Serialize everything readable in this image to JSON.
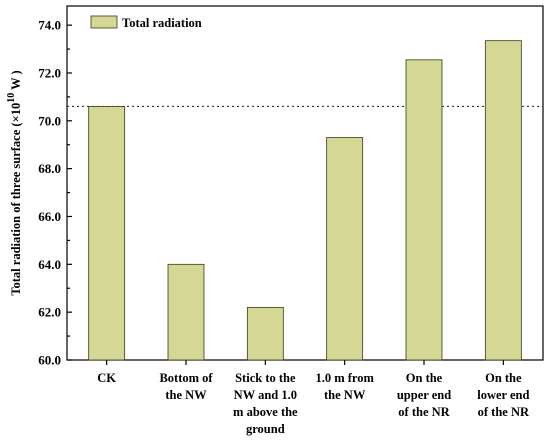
{
  "chart_data": {
    "type": "bar",
    "categories": [
      [
        "CK"
      ],
      [
        "Bottom of",
        "the NW"
      ],
      [
        "Stick to the",
        "NW and 1.0",
        "m above the",
        "ground"
      ],
      [
        "1.0 m from",
        "the NW"
      ],
      [
        "On the",
        "upper end",
        "of the NR"
      ],
      [
        "On the",
        "lower end",
        "of the NR"
      ]
    ],
    "series": [
      {
        "name": "Total radiation",
        "values": [
          70.6,
          64.0,
          62.2,
          69.3,
          72.55,
          73.35
        ]
      }
    ],
    "ylabel_pre": "Total radiation of three surface (×10",
    "ylabel_sup": "10",
    "ylabel_post": " W )",
    "ylim": [
      60.0,
      74.8
    ],
    "yticks": [
      "60.0",
      "62.0",
      "64.0",
      "66.0",
      "68.0",
      "70.0",
      "72.0",
      "74.0"
    ],
    "reference_line": 70.6,
    "legend_position": "top-left",
    "grid": false,
    "colors": {
      "bar": "#d4d894",
      "bar_edge": "#3a3a1a",
      "axis": "#000000"
    }
  }
}
